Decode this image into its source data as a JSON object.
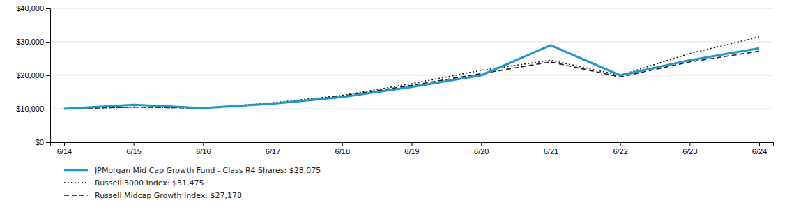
{
  "chart_data": {
    "type": "line",
    "categories": [
      "6/14",
      "6/15",
      "6/16",
      "6/17",
      "6/18",
      "6/19",
      "6/20",
      "6/21",
      "6/22",
      "6/23",
      "6/24"
    ],
    "series": [
      {
        "name": "JPMorgan Mid Cap Growth Fund - Class R4 Shares: $28,075",
        "color": "#2196c8",
        "line_style": "solid",
        "values": [
          10000,
          11200,
          10200,
          11500,
          13500,
          16500,
          20000,
          29000,
          20000,
          24500,
          28075
        ]
      },
      {
        "name": "Russell 3000 Index: $31,475",
        "color": "#1a1a1a",
        "line_style": "dotted",
        "values": [
          10000,
          10500,
          10200,
          11800,
          14000,
          17500,
          21500,
          24500,
          20000,
          26500,
          31475
        ]
      },
      {
        "name": "Russell Midcap Growth Index: $27,178",
        "color": "#1a1a1a",
        "line_style": "dashed",
        "values": [
          10000,
          10500,
          10200,
          11500,
          13800,
          17000,
          20500,
          24000,
          19500,
          24000,
          27178
        ]
      }
    ],
    "ylim": [
      0,
      40000
    ],
    "yticks": [
      {
        "value": 0,
        "label": "$0"
      },
      {
        "value": 10000,
        "label": "$10,000"
      },
      {
        "value": 20000,
        "label": "$20,000"
      },
      {
        "value": 30000,
        "label": "$30,000"
      },
      {
        "value": 40000,
        "label": "$40,000"
      }
    ],
    "grid": true,
    "legend": "bottom"
  }
}
